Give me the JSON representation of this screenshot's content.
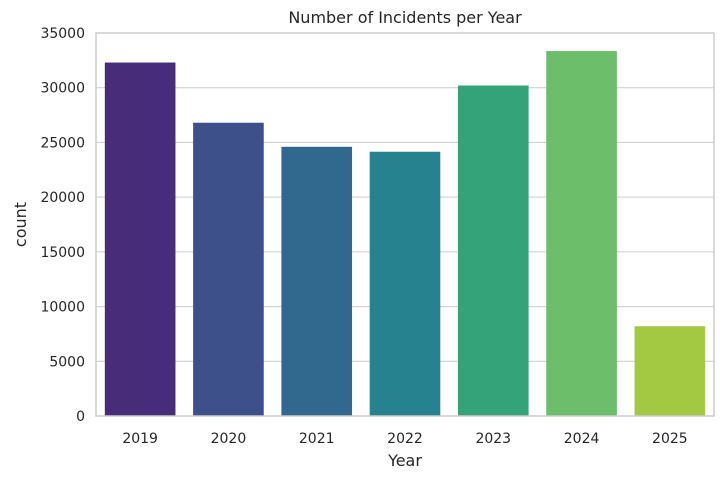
{
  "chart_data": {
    "type": "bar",
    "title": "Number of Incidents per Year",
    "xlabel": "Year",
    "ylabel": "count",
    "categories": [
      "2019",
      "2020",
      "2021",
      "2022",
      "2023",
      "2024",
      "2025"
    ],
    "values": [
      32300,
      26800,
      24600,
      24150,
      30200,
      33350,
      8200
    ],
    "colors": [
      "#472c7a",
      "#3e5089",
      "#31688e",
      "#26828e",
      "#35a37a",
      "#6cbe6b",
      "#a3c943"
    ],
    "ylim": [
      0,
      35000
    ],
    "yticks": [
      0,
      5000,
      10000,
      15000,
      20000,
      25000,
      30000,
      35000
    ],
    "grid": true,
    "legend": "none"
  }
}
